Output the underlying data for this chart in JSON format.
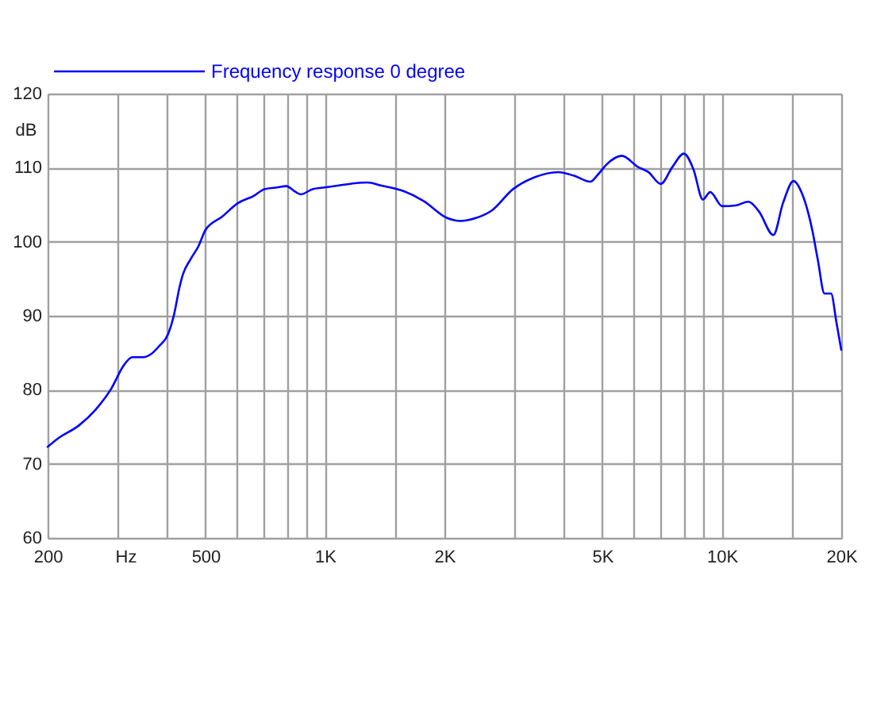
{
  "chart_data": {
    "type": "line",
    "xlabel": "Hz",
    "ylabel": "dB",
    "log": "x",
    "grid": true,
    "legend": "top left",
    "xlim": [
      200,
      20000
    ],
    "ylim": [
      60,
      120
    ],
    "xticks": [
      200,
      {
        "value": 300,
        "label": null
      },
      {
        "value": 400,
        "label": null
      },
      500,
      {
        "value": 600,
        "label": null
      },
      {
        "value": 700,
        "label": null
      },
      {
        "value": 800,
        "label": null
      },
      {
        "value": 900,
        "label": null
      },
      {
        "value": 1000,
        "label": "1K"
      },
      {
        "value": 1500,
        "label": null
      },
      {
        "value": 2000,
        "label": "2K"
      },
      {
        "value": 3000,
        "label": null
      },
      {
        "value": 4000,
        "label": null
      },
      {
        "value": 5000,
        "label": "5K"
      },
      {
        "value": 6000,
        "label": null
      },
      {
        "value": 7000,
        "label": null
      },
      {
        "value": 8000,
        "label": null
      },
      {
        "value": 9000,
        "label": null
      },
      {
        "value": 10000,
        "label": "10K"
      },
      {
        "value": 15000,
        "label": null
      },
      {
        "value": 20000,
        "label": "20K"
      }
    ],
    "yticks": [
      60,
      70,
      80,
      90,
      100,
      110,
      120
    ],
    "x": [
      200,
      212,
      240,
      264,
      289,
      312,
      327,
      348,
      364,
      382,
      403,
      415,
      431,
      438,
      458,
      480,
      500,
      551,
      603,
      662,
      704,
      751,
      800,
      834,
      869,
      930,
      988,
      1084,
      1188,
      1280,
      1382,
      1565,
      1772,
      2031,
      2193,
      2400,
      2630,
      2978,
      3373,
      3871,
      4246,
      4660,
      4880,
      5117,
      5597,
      6144,
      6530,
      7018,
      7510,
      8025,
      8480,
      8960,
      9350,
      10024,
      10830,
      11670,
      12400,
      13490,
      14260,
      15170,
      15900,
      16900,
      17450,
      18150,
      18850,
      19450,
      20000
    ],
    "series": [
      {
        "name": "Frequency response 0 degree",
        "color": "#0000ff",
        "values": [
          72.3,
          73.4,
          75.2,
          77.3,
          80.1,
          83.4,
          84.4,
          84.4,
          84.8,
          85.9,
          87.6,
          89.8,
          94.1,
          95.5,
          97.6,
          99.4,
          101.6,
          103.4,
          105.2,
          106.2,
          107.1,
          107.3,
          107.5,
          106.9,
          106.4,
          107.1,
          107.3,
          107.6,
          107.9,
          108.0,
          107.6,
          106.9,
          105.5,
          103.2,
          102.8,
          103.2,
          104.2,
          107.1,
          108.7,
          109.4,
          108.9,
          108.1,
          109.1,
          110.4,
          111.6,
          110.1,
          109.4,
          107.8,
          110.1,
          111.9,
          109.8,
          105.7,
          106.7,
          104.8,
          104.9,
          105.4,
          104.1,
          100.9,
          105.2,
          108.2,
          106.6,
          101.6,
          97.6,
          93.0,
          93.0,
          89.1,
          85.4
        ]
      }
    ]
  }
}
